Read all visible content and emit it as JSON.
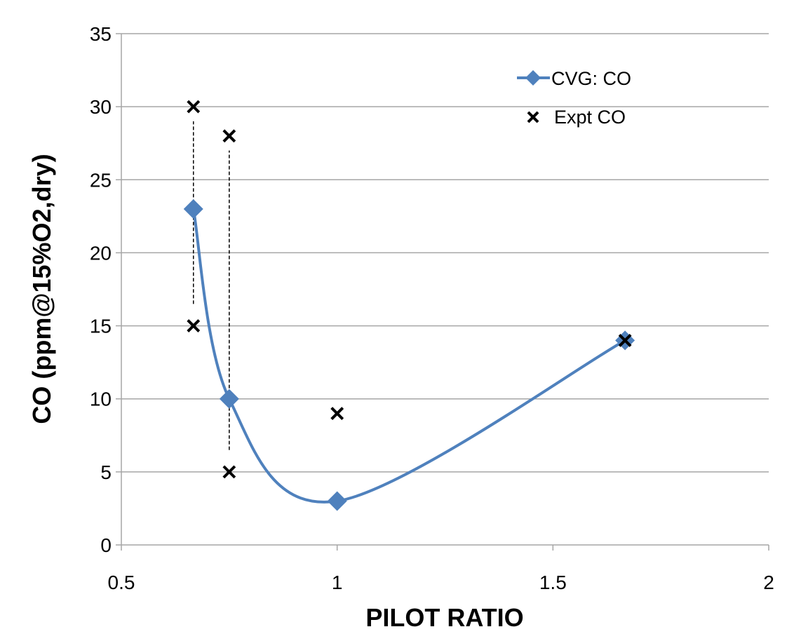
{
  "chart_data": {
    "type": "line",
    "title": "",
    "xlabel": "PILOT RATIO",
    "ylabel": "CO (ppm@15%O2,dry)",
    "xlim": [
      0.5,
      2
    ],
    "ylim": [
      0,
      35
    ],
    "xticks": [
      "0.5",
      "1",
      "1.5",
      "2"
    ],
    "yticks": [
      "0",
      "5",
      "10",
      "15",
      "20",
      "25",
      "30",
      "35"
    ],
    "grid": "horizontal",
    "legend_position": "top-right",
    "series": [
      {
        "name": "CVG: CO",
        "style": "smoothed line with diamond markers",
        "color": "#4F81BD",
        "x": [
          0.667,
          0.75,
          1.0,
          1.667
        ],
        "y": [
          23,
          10,
          3,
          14
        ]
      },
      {
        "name": "Expt CO",
        "style": "x markers",
        "color": "#000000",
        "x": [
          0.667,
          0.667,
          0.75,
          0.75,
          1.0,
          1.667
        ],
        "y": [
          30,
          15,
          28,
          5,
          9,
          14
        ]
      }
    ],
    "dashed_ranges": [
      {
        "x": 0.667,
        "y": [
          16.5,
          29
        ]
      },
      {
        "x": 0.75,
        "y": [
          6.5,
          27
        ]
      }
    ]
  }
}
